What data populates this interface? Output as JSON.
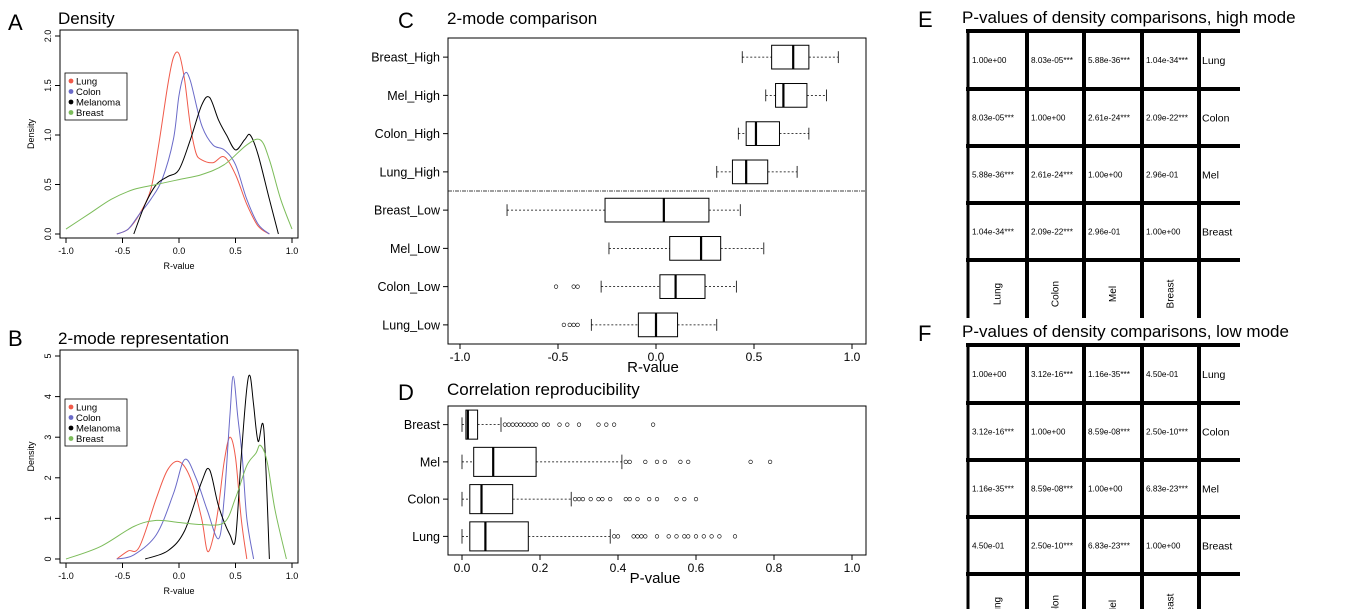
{
  "panels": {
    "A": {
      "letter": "A",
      "title": "Density"
    },
    "B": {
      "letter": "B",
      "title": "2-mode representation"
    },
    "C": {
      "letter": "C",
      "title": "2-mode comparison"
    },
    "D": {
      "letter": "D",
      "title": "Correlation reproducibility"
    },
    "E": {
      "letter": "E",
      "title": "P-values of density comparisons, high mode"
    },
    "F": {
      "letter": "F",
      "title": "P-values of density comparisons, low mode"
    }
  },
  "chart_data": [
    {
      "id": "A",
      "type": "line",
      "title": "Density",
      "xlabel": "R-value",
      "ylabel": "Density",
      "xlim": [
        -1.0,
        1.0
      ],
      "ylim": [
        0,
        2.0
      ],
      "xticks": [
        "-1.0",
        "-0.5",
        "0.0",
        "0.5",
        "1.0"
      ],
      "yticks": [
        "0.0",
        "0.5",
        "1.0",
        "1.5",
        "2.0"
      ],
      "legend": [
        "Lung",
        "Colon",
        "Melanoma",
        "Breast"
      ],
      "legend_position": "left",
      "series": [
        {
          "name": "Lung",
          "color": "#f05a4a",
          "x": [
            -0.55,
            -0.45,
            -0.35,
            -0.25,
            -0.18,
            -0.1,
            -0.05,
            0.0,
            0.05,
            0.1,
            0.15,
            0.2,
            0.3,
            0.4,
            0.5,
            0.6,
            0.7,
            0.8
          ],
          "y": [
            0.0,
            0.05,
            0.2,
            0.45,
            0.9,
            1.5,
            1.78,
            1.82,
            1.55,
            1.1,
            0.82,
            0.75,
            0.72,
            0.78,
            0.6,
            0.3,
            0.08,
            0.0
          ]
        },
        {
          "name": "Colon",
          "color": "#6a6ac8",
          "x": [
            -0.55,
            -0.45,
            -0.35,
            -0.25,
            -0.15,
            -0.05,
            0.0,
            0.05,
            0.1,
            0.2,
            0.3,
            0.4,
            0.5,
            0.6,
            0.7,
            0.8
          ],
          "y": [
            0.0,
            0.05,
            0.2,
            0.35,
            0.55,
            0.95,
            1.4,
            1.62,
            1.55,
            1.1,
            0.9,
            0.85,
            0.7,
            0.35,
            0.1,
            0.0
          ]
        },
        {
          "name": "Melanoma",
          "color": "#000000",
          "x": [
            -0.4,
            -0.3,
            -0.2,
            -0.1,
            0.0,
            0.1,
            0.2,
            0.27,
            0.35,
            0.42,
            0.5,
            0.58,
            0.63,
            0.7,
            0.8,
            0.88
          ],
          "y": [
            0.0,
            0.3,
            0.5,
            0.58,
            0.65,
            0.95,
            1.3,
            1.38,
            1.15,
            1.0,
            0.85,
            0.95,
            1.0,
            0.8,
            0.35,
            0.0
          ]
        },
        {
          "name": "Breast",
          "color": "#7cbc5a",
          "x": [
            -1.0,
            -0.8,
            -0.6,
            -0.4,
            -0.2,
            0.0,
            0.2,
            0.4,
            0.6,
            0.72,
            0.8,
            0.9,
            1.0
          ],
          "y": [
            0.05,
            0.2,
            0.35,
            0.45,
            0.5,
            0.55,
            0.6,
            0.7,
            0.9,
            0.95,
            0.75,
            0.35,
            0.05
          ]
        }
      ]
    },
    {
      "id": "B",
      "type": "line",
      "title": "2-mode representation",
      "xlabel": "R-value",
      "ylabel": "Density",
      "xlim": [
        -1.0,
        1.0
      ],
      "ylim": [
        0,
        5
      ],
      "xticks": [
        "-1.0",
        "-0.5",
        "0.0",
        "0.5",
        "1.0"
      ],
      "yticks": [
        "0",
        "1",
        "2",
        "3",
        "4",
        "5"
      ],
      "legend": [
        "Lung",
        "Colon",
        "Melanoma",
        "Breast"
      ],
      "legend_position": "left",
      "series": [
        {
          "name": "Lung",
          "color": "#f05a4a",
          "x": [
            -0.55,
            -0.45,
            -0.35,
            -0.2,
            -0.1,
            0.0,
            0.1,
            0.2,
            0.25,
            0.3,
            0.35,
            0.4,
            0.45,
            0.5,
            0.55,
            0.6
          ],
          "y": [
            0.0,
            0.2,
            0.3,
            1.5,
            2.2,
            2.4,
            2.0,
            1.0,
            0.2,
            0.5,
            1.3,
            2.4,
            3.0,
            2.5,
            1.0,
            0.0
          ]
        },
        {
          "name": "Colon",
          "color": "#6a6ac8",
          "x": [
            -0.55,
            -0.4,
            -0.2,
            -0.05,
            0.05,
            0.15,
            0.25,
            0.35,
            0.4,
            0.45,
            0.48,
            0.52,
            0.56,
            0.6,
            0.66
          ],
          "y": [
            0.0,
            0.1,
            0.6,
            1.6,
            2.45,
            2.0,
            1.2,
            0.5,
            1.5,
            3.5,
            4.5,
            3.5,
            2.5,
            1.0,
            0.0
          ]
        },
        {
          "name": "Melanoma",
          "color": "#000000",
          "x": [
            -0.3,
            -0.1,
            0.05,
            0.2,
            0.27,
            0.35,
            0.45,
            0.5,
            0.55,
            0.6,
            0.63,
            0.66,
            0.7,
            0.75,
            0.8
          ],
          "y": [
            0.0,
            0.2,
            0.7,
            1.9,
            2.2,
            1.3,
            0.6,
            0.5,
            2.5,
            4.2,
            4.5,
            3.8,
            2.9,
            3.2,
            0.0
          ]
        },
        {
          "name": "Breast",
          "color": "#7cbc5a",
          "x": [
            -1.0,
            -0.7,
            -0.4,
            -0.2,
            0.0,
            0.2,
            0.4,
            0.5,
            0.6,
            0.68,
            0.72,
            0.78,
            0.85,
            0.95
          ],
          "y": [
            0.0,
            0.3,
            0.8,
            0.95,
            0.9,
            0.85,
            0.9,
            1.5,
            2.3,
            2.6,
            2.8,
            2.4,
            1.2,
            0.0
          ]
        }
      ]
    },
    {
      "id": "C",
      "type": "boxplot",
      "title": "2-mode comparison",
      "xlabel": "R-value",
      "xlim": [
        -1.0,
        1.0
      ],
      "xticks": [
        "-1.0",
        "-0.5",
        "0.0",
        "0.5",
        "1.0"
      ],
      "separator_after": 4,
      "categories": [
        "Breast_High",
        "Mel_High",
        "Colon_High",
        "Lung_High",
        "Breast_Low",
        "Mel_Low",
        "Colon_Low",
        "Lung_Low"
      ],
      "boxes": [
        {
          "min": 0.44,
          "q1": 0.59,
          "median": 0.7,
          "q3": 0.78,
          "max": 0.93,
          "outliers": []
        },
        {
          "min": 0.56,
          "q1": 0.61,
          "median": 0.65,
          "q3": 0.77,
          "max": 0.87,
          "outliers": []
        },
        {
          "min": 0.42,
          "q1": 0.46,
          "median": 0.51,
          "q3": 0.63,
          "max": 0.78,
          "outliers": []
        },
        {
          "min": 0.31,
          "q1": 0.39,
          "median": 0.46,
          "q3": 0.57,
          "max": 0.72,
          "outliers": []
        },
        {
          "min": -0.76,
          "q1": -0.26,
          "median": 0.04,
          "q3": 0.27,
          "max": 0.43,
          "outliers": []
        },
        {
          "min": -0.24,
          "q1": 0.07,
          "median": 0.23,
          "q3": 0.33,
          "max": 0.55,
          "outliers": []
        },
        {
          "min": -0.28,
          "q1": 0.02,
          "median": 0.1,
          "q3": 0.25,
          "max": 0.41,
          "outliers": [
            -0.51,
            -0.42,
            -0.4
          ]
        },
        {
          "min": -0.33,
          "q1": -0.09,
          "median": 0.0,
          "q3": 0.11,
          "max": 0.31,
          "outliers": [
            -0.47,
            -0.44,
            -0.42,
            -0.4
          ]
        }
      ]
    },
    {
      "id": "D",
      "type": "boxplot",
      "title": "Correlation reproducibility",
      "xlabel": "P-value",
      "xlim": [
        0.0,
        1.0
      ],
      "xticks": [
        "0.0",
        "0.2",
        "0.4",
        "0.6",
        "0.8",
        "1.0"
      ],
      "categories": [
        "Breast",
        "Mel",
        "Colon",
        "Lung"
      ],
      "boxes": [
        {
          "min": 0.0,
          "q1": 0.01,
          "median": 0.015,
          "q3": 0.04,
          "max": 0.1,
          "outliers": [
            0.11,
            0.12,
            0.13,
            0.14,
            0.15,
            0.16,
            0.17,
            0.18,
            0.19,
            0.21,
            0.22,
            0.25,
            0.27,
            0.3,
            0.35,
            0.37,
            0.39,
            0.49
          ]
        },
        {
          "min": 0.0,
          "q1": 0.03,
          "median": 0.08,
          "q3": 0.19,
          "max": 0.41,
          "outliers": [
            0.42,
            0.43,
            0.47,
            0.5,
            0.52,
            0.56,
            0.58,
            0.74,
            0.79
          ]
        },
        {
          "min": 0.0,
          "q1": 0.02,
          "median": 0.05,
          "q3": 0.13,
          "max": 0.28,
          "outliers": [
            0.29,
            0.3,
            0.31,
            0.33,
            0.35,
            0.36,
            0.38,
            0.42,
            0.43,
            0.45,
            0.48,
            0.5,
            0.55,
            0.57,
            0.6
          ]
        },
        {
          "min": 0.0,
          "q1": 0.02,
          "median": 0.06,
          "q3": 0.17,
          "max": 0.38,
          "outliers": [
            0.39,
            0.4,
            0.44,
            0.45,
            0.46,
            0.47,
            0.5,
            0.53,
            0.55,
            0.57,
            0.58,
            0.6,
            0.62,
            0.64,
            0.66,
            0.7
          ]
        }
      ]
    },
    {
      "id": "E",
      "type": "table",
      "title": "P-values of density comparisons, high mode",
      "row_labels": [
        "Lung",
        "Colon",
        "Mel",
        "Breast"
      ],
      "col_labels": [
        "Lung",
        "Colon",
        "Mel",
        "Breast"
      ],
      "cells": [
        [
          "1.00e+00",
          "8.03e-05***",
          "5.88e-36***",
          "1.04e-34***"
        ],
        [
          "8.03e-05***",
          "1.00e+00",
          "2.61e-24***",
          "2.09e-22***"
        ],
        [
          "5.88e-36***",
          "2.61e-24***",
          "1.00e+00",
          "2.96e-01"
        ],
        [
          "1.04e-34***",
          "2.09e-22***",
          "2.96e-01",
          "1.00e+00"
        ]
      ]
    },
    {
      "id": "F",
      "type": "table",
      "title": "P-values of density comparisons, low mode",
      "row_labels": [
        "Lung",
        "Colon",
        "Mel",
        "Breast"
      ],
      "col_labels": [
        "Lung",
        "Colon",
        "Mel",
        "Breast"
      ],
      "cells": [
        [
          "1.00e+00",
          "3.12e-16***",
          "1.16e-35***",
          "4.50e-01"
        ],
        [
          "3.12e-16***",
          "1.00e+00",
          "8.59e-08***",
          "2.50e-10***"
        ],
        [
          "1.16e-35***",
          "8.59e-08***",
          "1.00e+00",
          "6.83e-23***"
        ],
        [
          "4.50e-01",
          "2.50e-10***",
          "6.83e-23***",
          "1.00e+00"
        ]
      ]
    }
  ]
}
